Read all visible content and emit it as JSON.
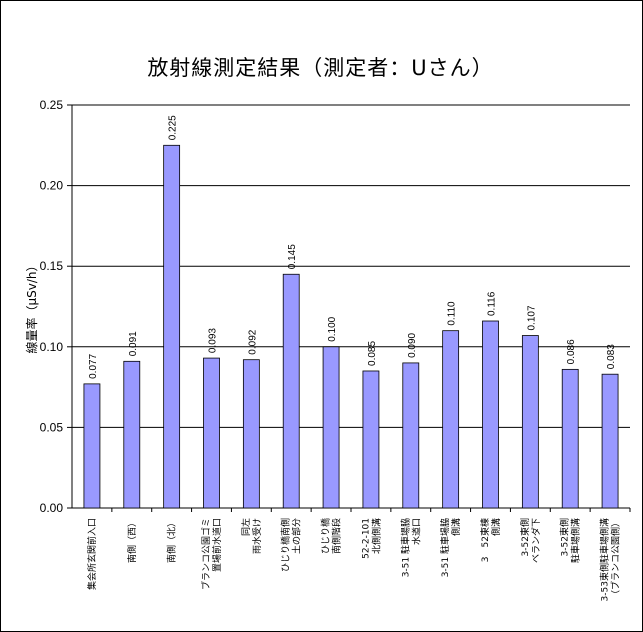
{
  "chart_data": {
    "type": "bar",
    "title": "放射線測定結果（測定者：Uさん）",
    "xlabel": "",
    "ylabel": "線量率（μSv/h）",
    "ylim": [
      0,
      0.25
    ],
    "yticks": [
      "0.00",
      "0.05",
      "0.10",
      "0.15",
      "0.20",
      "0.25"
    ],
    "grid": true,
    "legend": "none",
    "bar_color": "#9999ff",
    "categories": [
      [
        "集会所玄関前入口"
      ],
      [
        "南側（西）"
      ],
      [
        "南側（北）"
      ],
      [
        "ブランコ公園ゴミ",
        "置場前水道口"
      ],
      [
        "同左",
        "雨水受け"
      ],
      [
        "ひじり橋南側",
        "土の部分"
      ],
      [
        "ひじり橋",
        "南側階段"
      ],
      [
        "52-2-101",
        "北側側溝"
      ],
      [
        "3-51 駐車場脇",
        "水道口"
      ],
      [
        "3-51 駐車場脇",
        "側溝"
      ],
      [
        "3　52東棟",
        "側溝"
      ],
      [
        "3-52東側",
        "ベランダ下"
      ],
      [
        "3-52東側",
        "駐車場側溝"
      ],
      [
        "3-53東側駐車場側溝",
        "（ブランコ公園側）"
      ]
    ],
    "values": [
      0.077,
      0.091,
      0.225,
      0.093,
      0.092,
      0.145,
      0.1,
      0.085,
      0.09,
      0.11,
      0.116,
      0.107,
      0.086,
      0.083
    ],
    "data_labels": [
      "0.077",
      "0.091",
      "0.225",
      "0.093",
      "0.092",
      "0.145",
      "0.100",
      "0.085",
      "0.090",
      "0.110",
      "0.116",
      "0.107",
      "0.086",
      "0.083"
    ]
  }
}
